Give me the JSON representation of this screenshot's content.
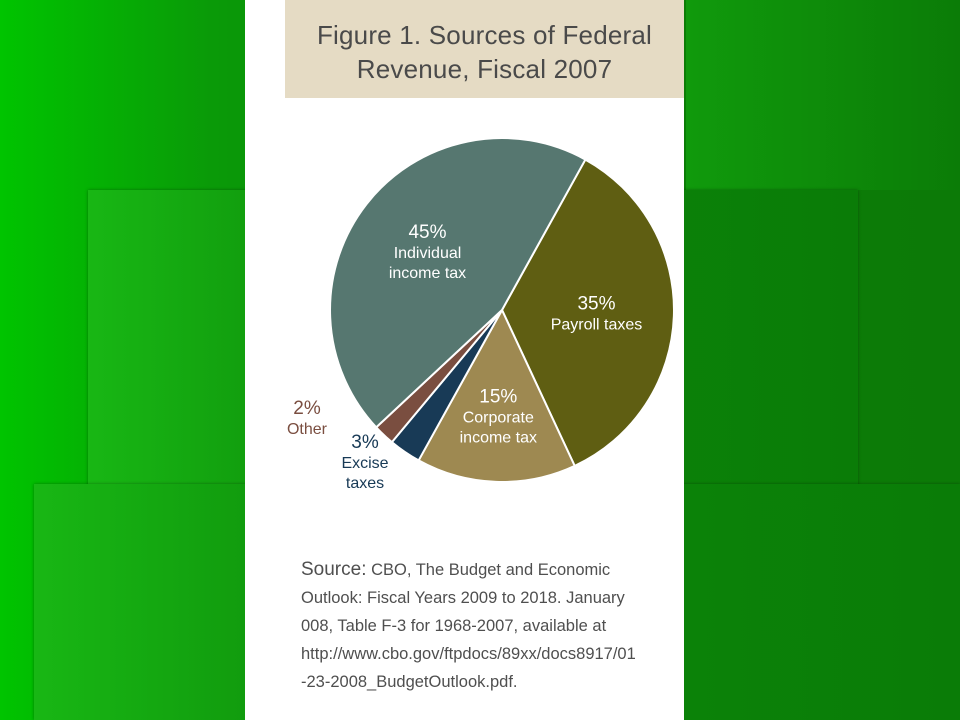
{
  "figure": {
    "title_line1": "Figure 1. Sources of Federal",
    "title_line2": "Revenue, Fiscal 2007"
  },
  "source": {
    "label": "Source:",
    "line1": "CBO, The Budget and Economic",
    "line2": "Outlook: Fiscal Years 2009 to 2018. January",
    "line3": "008, Table F-3 for 1968-2007, available at",
    "line4": "http://www.cbo.gov/ftpdocs/89xx/docs8917/01",
    "line5": "-23-2008_BudgetOutlook.pdf."
  },
  "colors": {
    "background_green": "#0c7f07",
    "title_box": "#e5dbc4",
    "text": "#4a4a4a"
  },
  "chart_data": {
    "type": "pie",
    "title": "Figure 1. Sources of Federal Revenue, Fiscal 2007",
    "slices": [
      {
        "label": "Individual income tax",
        "label_lines": [
          "Individual",
          "income tax"
        ],
        "value": 45,
        "pct_text": "45%",
        "color": "#567770"
      },
      {
        "label": "Payroll taxes",
        "label_lines": [
          "Payroll taxes"
        ],
        "value": 35,
        "pct_text": "35%",
        "color": "#5f5e12"
      },
      {
        "label": "Corporate income tax",
        "label_lines": [
          "Corporate",
          "income tax"
        ],
        "value": 15,
        "pct_text": "15%",
        "color": "#9e8951"
      },
      {
        "label": "Excise taxes",
        "label_lines": [
          "Excise",
          "taxes"
        ],
        "value": 3,
        "pct_text": "3%",
        "color": "#183a56"
      },
      {
        "label": "Other",
        "label_lines": [
          "Other"
        ],
        "value": 2,
        "pct_text": "2%",
        "color": "#7a4e40"
      }
    ]
  }
}
